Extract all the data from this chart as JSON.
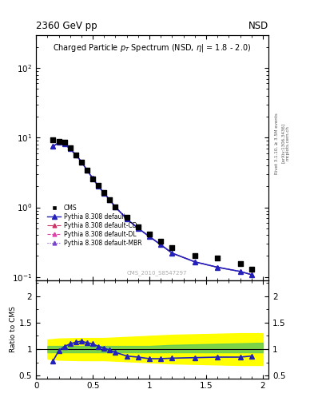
{
  "title_header_left": "2360 GeV pp",
  "title_header_right": "NSD",
  "main_title": "Charged Particle p$_T$ Spectrum (NSD, η| = 1.8 - 2.0)",
  "watermark": "CMS_2010_S8547297",
  "right_label": "Rivet 3.1.10, ≥ 3.5M events\n[arXiv:1306.3436]",
  "right_label2": "mcplots.cern.ch",
  "ylabel_ratio": "Ratio to CMS",
  "cms_x": [
    0.15,
    0.2,
    0.25,
    0.3,
    0.35,
    0.4,
    0.45,
    0.5,
    0.55,
    0.6,
    0.65,
    0.7,
    0.8,
    0.9,
    1.0,
    1.1,
    1.2,
    1.4,
    1.6,
    1.8,
    1.9
  ],
  "cms_y": [
    9.3,
    8.9,
    8.7,
    7.1,
    5.6,
    4.4,
    3.4,
    2.55,
    2.05,
    1.62,
    1.27,
    1.01,
    0.72,
    0.52,
    0.41,
    0.33,
    0.265,
    0.205,
    0.188,
    0.155,
    0.128
  ],
  "pythia_x": [
    0.15,
    0.2,
    0.25,
    0.3,
    0.35,
    0.4,
    0.45,
    0.5,
    0.55,
    0.6,
    0.65,
    0.7,
    0.8,
    0.9,
    1.0,
    1.1,
    1.2,
    1.4,
    1.6,
    1.8,
    1.9
  ],
  "pythia_y": [
    7.5,
    8.5,
    8.2,
    6.9,
    5.7,
    4.5,
    3.4,
    2.6,
    2.0,
    1.6,
    1.27,
    1.01,
    0.68,
    0.5,
    0.38,
    0.29,
    0.22,
    0.165,
    0.138,
    0.12,
    0.108
  ],
  "ratio_x": [
    0.15,
    0.2,
    0.25,
    0.3,
    0.35,
    0.4,
    0.45,
    0.5,
    0.55,
    0.6,
    0.65,
    0.7,
    0.8,
    0.9,
    1.0,
    1.1,
    1.2,
    1.4,
    1.6,
    1.8,
    1.9
  ],
  "ratio_y": [
    0.78,
    0.97,
    1.05,
    1.1,
    1.13,
    1.15,
    1.12,
    1.1,
    1.05,
    1.02,
    0.98,
    0.94,
    0.87,
    0.85,
    0.82,
    0.82,
    0.83,
    0.84,
    0.85,
    0.85,
    0.87
  ],
  "yellow_band_x": [
    0.1,
    0.2,
    0.4,
    0.6,
    0.8,
    1.0,
    1.2,
    1.4,
    1.6,
    1.8,
    2.0
  ],
  "yellow_low": [
    0.82,
    0.8,
    0.79,
    0.79,
    0.77,
    0.75,
    0.73,
    0.72,
    0.71,
    0.7,
    0.7
  ],
  "yellow_high": [
    1.18,
    1.2,
    1.21,
    1.21,
    1.23,
    1.25,
    1.27,
    1.28,
    1.29,
    1.3,
    1.3
  ],
  "green_low": [
    0.94,
    0.94,
    0.94,
    0.94,
    0.94,
    0.94,
    0.94,
    0.94,
    0.94,
    0.94,
    0.94
  ],
  "green_high": [
    1.06,
    1.06,
    1.06,
    1.06,
    1.06,
    1.06,
    1.08,
    1.09,
    1.1,
    1.11,
    1.12
  ],
  "line_color": "#2222bb",
  "cms_color": "#000000",
  "ylim_main": [
    0.09,
    300
  ],
  "ylim_ratio": [
    0.45,
    2.3
  ],
  "xlim": [
    0.0,
    2.05
  ]
}
